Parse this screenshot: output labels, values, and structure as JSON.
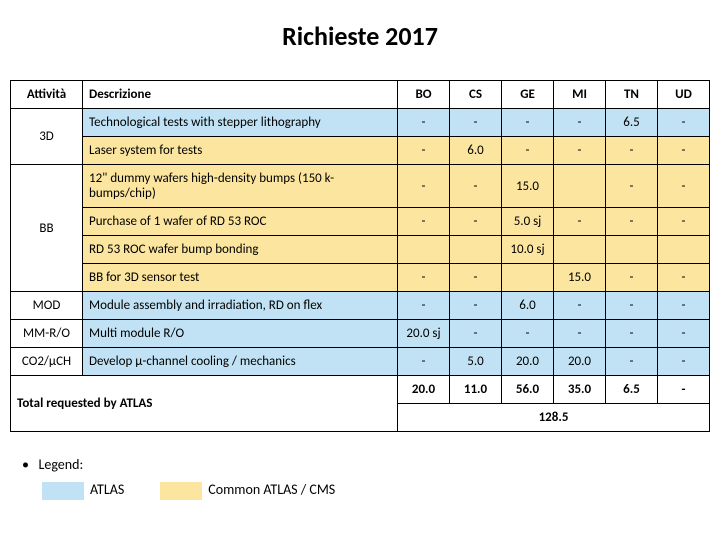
{
  "title": "Richieste 2017",
  "headers": {
    "attivita": "Attività",
    "descrizione": "Descrizione",
    "cols": [
      "BO",
      "CS",
      "GE",
      "MI",
      "TN",
      "UD"
    ]
  },
  "rows": [
    {
      "act": "3D",
      "act_rowspan": 2,
      "desc": "Technological tests with stepper lithography",
      "style": "atlas",
      "vals": [
        "-",
        "-",
        "-",
        "-",
        "6.5",
        "-"
      ]
    },
    {
      "act": null,
      "desc": "Laser system for tests",
      "style": "common",
      "vals": [
        "-",
        "6.0",
        "-",
        "-",
        "-",
        "-"
      ]
    },
    {
      "act": "BB",
      "act_rowspan": 4,
      "desc": "12\" dummy wafers high-density bumps (150 k-bumps/chip)",
      "style": "common",
      "vals": [
        "-",
        "-",
        "15.0",
        "",
        "-",
        "-"
      ]
    },
    {
      "act": null,
      "desc": "Purchase of 1 wafer of RD 53 ROC",
      "style": "common",
      "vals": [
        "-",
        "-",
        "5.0 sj",
        "-",
        "-",
        "-"
      ]
    },
    {
      "act": null,
      "desc": "RD 53 ROC wafer bump bonding",
      "style": "common",
      "vals": [
        "",
        "",
        "10.0 sj",
        "",
        "",
        ""
      ]
    },
    {
      "act": null,
      "desc": "BB for 3D sensor  test",
      "style": "common",
      "vals": [
        "-",
        "-",
        "",
        "15.0",
        "-",
        "-"
      ]
    },
    {
      "act": "MOD",
      "act_rowspan": 1,
      "desc": "Module assembly and irradiation, RD on flex",
      "style": "atlas",
      "vals": [
        "-",
        "-",
        "6.0",
        "-",
        "-",
        "-"
      ]
    },
    {
      "act": "MM-R/O",
      "act_rowspan": 1,
      "desc": "Multi module R/O",
      "style": "atlas",
      "vals": [
        "20.0 sj",
        "-",
        "-",
        "-",
        "-",
        "-"
      ]
    },
    {
      "act": "CO2/μCH",
      "act_rowspan": 1,
      "desc": "Develop μ-channel cooling / mechanics",
      "style": "atlas",
      "vals": [
        "-",
        "5.0",
        "20.0",
        "20.0",
        "-",
        "-"
      ]
    }
  ],
  "total": {
    "label": "Total requested by ATLAS",
    "vals": [
      "20.0",
      "11.0",
      "56.0",
      "35.0",
      "6.5",
      "-"
    ],
    "grand": "128.5"
  },
  "legend": {
    "title": "Legend:",
    "items": [
      {
        "label": "ATLAS",
        "class": "atlas-bg"
      },
      {
        "label": "Common ATLAS / CMS",
        "class": "common-bg"
      }
    ]
  },
  "colors": {
    "atlas": "#c0e2f4",
    "common": "#fbe59f"
  }
}
